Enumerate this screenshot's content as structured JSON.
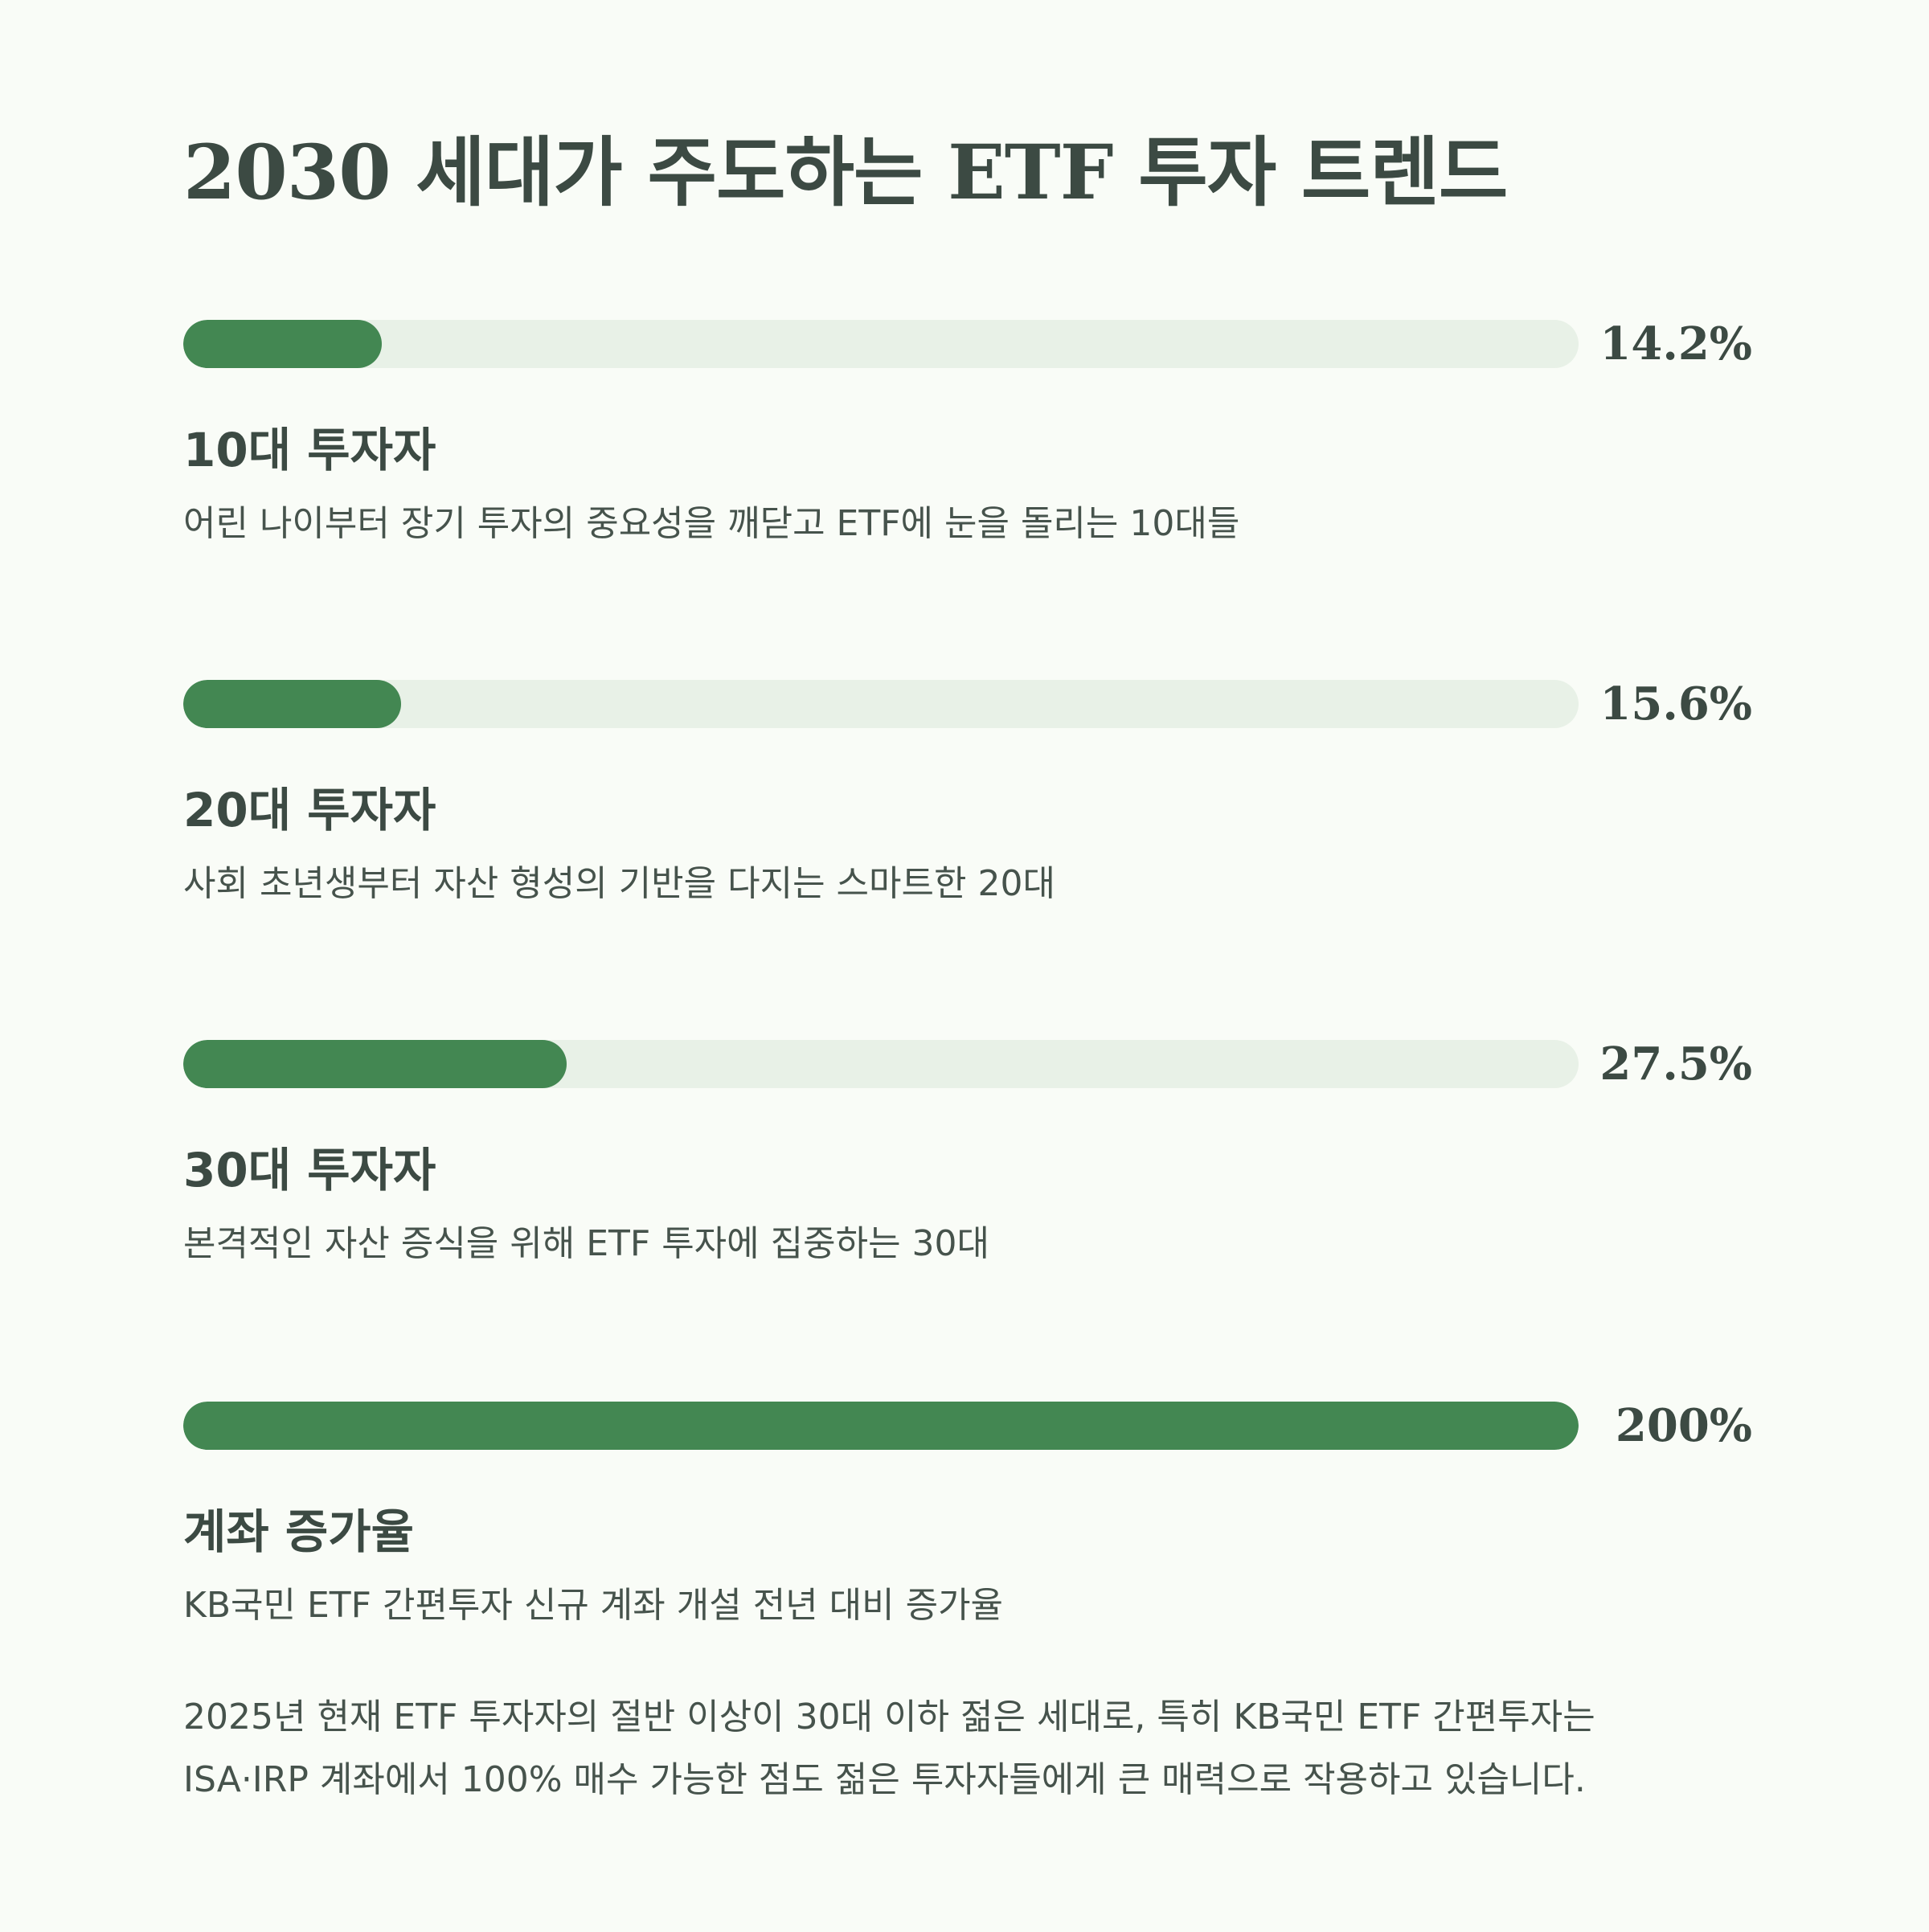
{
  "title": "2030 세대가 주도하는 ETF 투자 트렌드",
  "colors": {
    "background": "#f9fcf7",
    "track": "#e8f1e7",
    "fill": "#438752",
    "text": "#3c4a43"
  },
  "chart_data": {
    "type": "bar",
    "orientation": "horizontal",
    "categories": [
      "10대 투자자",
      "20대 투자자",
      "30대 투자자",
      "계좌 증가율"
    ],
    "values": [
      14.2,
      15.6,
      27.5,
      200
    ],
    "value_labels": [
      "14.2%",
      "15.6%",
      "27.5%",
      "200%"
    ],
    "descriptions": [
      "어린 나이부터 장기 투자의 중요성을 깨닫고 ETF에 눈을 돌리는 10대들",
      "사회 초년생부터 자산 형성의 기반을 다지는 스마트한 20대",
      "본격적인 자산 증식을 위해 ETF 투자에 집중하는 30대",
      "KB국민 ETF 간편투자 신규 계좌 개설 전년 대비 증가율"
    ],
    "fill_fraction": [
      0.142,
      0.156,
      0.275,
      1.0
    ],
    "title": "2030 세대가 주도하는 ETF 투자 트렌드",
    "xlabel": "",
    "ylabel": ""
  },
  "footnote": {
    "line1": "2025년 현재 ETF 투자자의 절반 이상이 30대 이하 젊은 세대로, 특히 KB국민 ETF 간편투자는",
    "line2": "ISA·IRP 계좌에서 100% 매수 가능한 점도 젊은 투자자들에게 큰 매력으로 작용하고 있습니다."
  }
}
